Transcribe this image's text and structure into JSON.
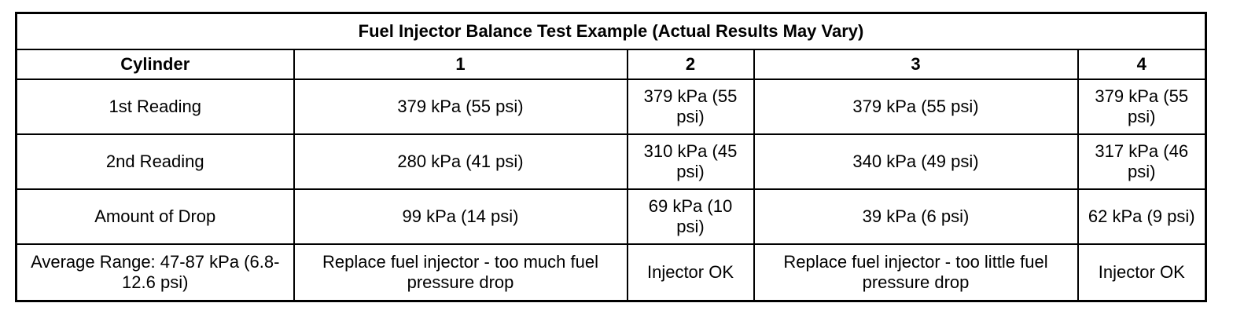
{
  "table": {
    "title": "Fuel Injector Balance Test Example (Actual Results May Vary)",
    "columns": [
      "Cylinder",
      "1",
      "2",
      "3",
      "4"
    ],
    "rows": [
      [
        "1st Reading",
        "379 kPa (55 psi)",
        "379 kPa (55 psi)",
        "379 kPa (55 psi)",
        "379 kPa (55 psi)"
      ],
      [
        "2nd Reading",
        "280 kPa (41 psi)",
        "310 kPa (45 psi)",
        "340 kPa (49 psi)",
        "317 kPa (46 psi)"
      ],
      [
        "Amount of Drop",
        "99 kPa (14 psi)",
        "69 kPa (10 psi)",
        "39 kPa (6 psi)",
        "62 kPa (9 psi)"
      ],
      [
        "Average Range: 47-87 kPa (6.8-12.6 psi)",
        "Replace fuel injector - too much fuel pressure drop",
        "Injector OK",
        "Replace fuel injector - too little fuel pressure drop",
        "Injector OK"
      ]
    ]
  }
}
